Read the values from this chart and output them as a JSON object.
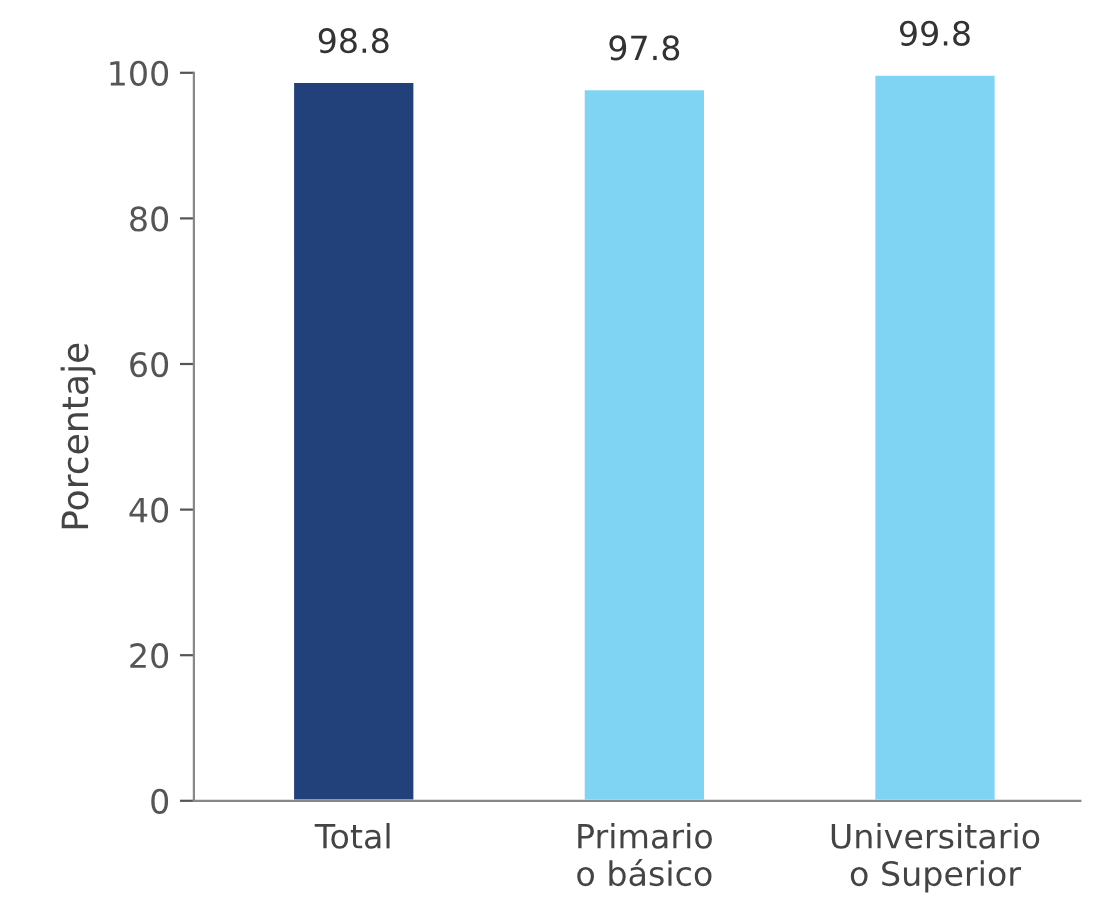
{
  "chart_data": {
    "type": "bar",
    "ylabel": "Porcentaje",
    "categories": [
      "Total",
      "Primario\no básico",
      "Universitario\no Superior"
    ],
    "values": [
      98.8,
      97.8,
      99.8
    ],
    "colors": [
      "#22417b",
      "#80d4f3",
      "#80d4f3"
    ],
    "ylim": [
      0,
      100
    ],
    "yticks": [
      0,
      20,
      40,
      60,
      80,
      100
    ],
    "grid": false,
    "legend": false,
    "data_labels": true
  }
}
